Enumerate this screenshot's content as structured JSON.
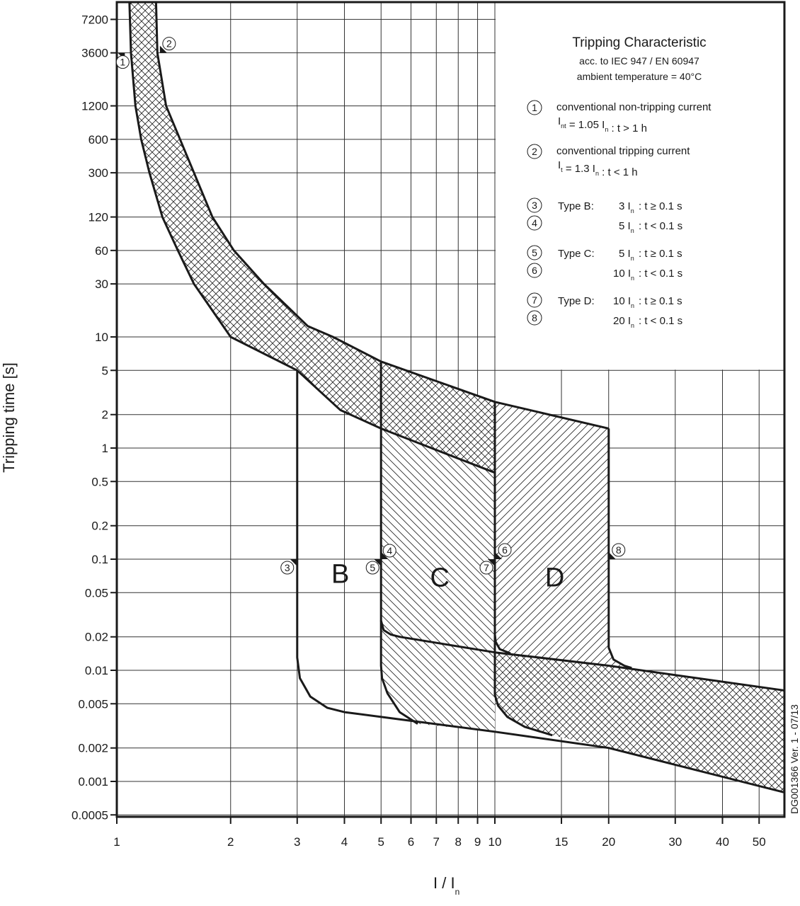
{
  "chart_data": {
    "type": "line",
    "title": "Tripping Characteristic",
    "subtitle": [
      "acc. to IEC 947 / EN 60947",
      "ambient temperature = 40°C"
    ],
    "xlabel": {
      "main": "I / I",
      "sub": "n"
    },
    "ylabel": "Tripping time [s]",
    "x_scale": "log",
    "y_scale": "log",
    "xlim": [
      1,
      58
    ],
    "ylim": [
      0.0005,
      10300
    ],
    "grid": true,
    "x_ticks": [
      1,
      2,
      3,
      4,
      5,
      6,
      7,
      8,
      9,
      10,
      15,
      20,
      30,
      40,
      50
    ],
    "x_tick_labels": [
      "1",
      "2",
      "3",
      "4",
      "5",
      "6",
      "7",
      "8",
      "9",
      "10",
      "15",
      "20",
      "30",
      "40",
      "50"
    ],
    "y_ticks": [
      7200,
      3600,
      1200,
      600,
      300,
      120,
      60,
      30,
      10,
      5,
      2,
      1,
      0.5,
      0.2,
      0.1,
      0.05,
      0.02,
      0.01,
      0.005,
      0.002,
      0.001,
      0.0005
    ],
    "y_tick_labels": [
      "7200",
      "3600",
      "1200",
      "600",
      "300",
      "120",
      "60",
      "30",
      "10",
      "5",
      "2",
      "1",
      "0.5",
      "0.2",
      "0.1",
      "0.05",
      "0.02",
      "0.01",
      "0.005",
      "0.002",
      "0.001",
      "0.0005"
    ],
    "legend_placement": "top-right",
    "regions": [
      {
        "id": "type-c-zone",
        "hatch": "diag-back",
        "points": [
          [
            5,
            6
          ],
          [
            10,
            2.6
          ],
          [
            10,
            0.0028
          ],
          [
            6.25,
            0.0033
          ],
          [
            5.6,
            0.0042
          ],
          [
            5.2,
            0.0062
          ],
          [
            5.03,
            0.0085
          ],
          [
            5,
            0.011
          ]
        ]
      },
      {
        "id": "type-d-zone",
        "hatch": "diag-fwd",
        "points": [
          [
            10,
            2.6
          ],
          [
            20,
            1.5
          ],
          [
            20,
            0.016
          ],
          [
            20.6,
            0.0125
          ],
          [
            22,
            0.011
          ],
          [
            23,
            0.0105
          ],
          [
            20,
            0.011
          ],
          [
            11,
            0.0142
          ],
          [
            10.3,
            0.0155
          ],
          [
            10.05,
            0.018
          ],
          [
            10,
            0.021
          ]
        ]
      },
      {
        "id": "thermal-band",
        "hatch": "cross",
        "points": [
          [
            1.27,
            10300
          ],
          [
            1.28,
            3600
          ],
          [
            1.35,
            1200
          ],
          [
            1.47,
            600
          ],
          [
            1.6,
            300
          ],
          [
            1.79,
            120
          ],
          [
            2.04,
            60
          ],
          [
            2.45,
            30
          ],
          [
            3.2,
            12.5
          ],
          [
            3.73,
            10
          ],
          [
            5,
            6
          ],
          [
            10,
            2.6
          ],
          [
            10,
            0.6
          ],
          [
            5,
            1.5
          ],
          [
            3.9,
            2.2
          ],
          [
            3,
            5
          ],
          [
            2.0,
            10
          ],
          [
            1.6,
            30
          ],
          [
            1.45,
            60
          ],
          [
            1.32,
            120
          ],
          [
            1.22,
            300
          ],
          [
            1.16,
            600
          ],
          [
            1.12,
            1200
          ],
          [
            1.09,
            3600
          ],
          [
            1.08,
            10300
          ]
        ]
      },
      {
        "id": "magnetic-band",
        "hatch": "cross",
        "points": [
          [
            10,
            0.0145
          ],
          [
            20,
            0.011
          ],
          [
            58,
            0.0066
          ],
          [
            58,
            0.0008
          ],
          [
            20,
            0.002
          ],
          [
            14.2,
            0.0026
          ],
          [
            12,
            0.0031
          ],
          [
            10.8,
            0.0038
          ],
          [
            10.2,
            0.0048
          ],
          [
            10,
            0.006
          ]
        ]
      }
    ],
    "curves": [
      {
        "id": "thermal-upper-curve",
        "points": [
          [
            1.27,
            10300
          ],
          [
            1.28,
            3600
          ],
          [
            1.35,
            1200
          ],
          [
            1.47,
            600
          ],
          [
            1.6,
            300
          ],
          [
            1.79,
            120
          ],
          [
            2.04,
            60
          ],
          [
            2.45,
            30
          ],
          [
            3.2,
            12.5
          ],
          [
            3.73,
            10
          ],
          [
            5,
            6
          ],
          [
            10,
            2.6
          ],
          [
            20,
            1.5
          ]
        ]
      },
      {
        "id": "thermal-lower-curve",
        "points": [
          [
            1.08,
            10300
          ],
          [
            1.09,
            3600
          ],
          [
            1.12,
            1200
          ],
          [
            1.16,
            600
          ],
          [
            1.22,
            300
          ],
          [
            1.32,
            120
          ],
          [
            1.45,
            60
          ],
          [
            1.6,
            30
          ],
          [
            2.0,
            10
          ],
          [
            3,
            5
          ],
          [
            3.9,
            2.2
          ],
          [
            5,
            1.5
          ],
          [
            10,
            0.6
          ]
        ]
      },
      {
        "id": "type-b-curve",
        "points": [
          [
            3,
            5
          ],
          [
            3,
            0.013
          ],
          [
            3.05,
            0.0085
          ],
          [
            3.25,
            0.0058
          ],
          [
            3.6,
            0.0046
          ],
          [
            4,
            0.0042
          ],
          [
            10,
            0.0028
          ],
          [
            20,
            0.002
          ],
          [
            58,
            0.0008
          ]
        ]
      },
      {
        "id": "type-c-upper-curve",
        "points": [
          [
            5,
            6
          ],
          [
            5,
            0.028
          ],
          [
            5.08,
            0.023
          ],
          [
            5.3,
            0.021
          ],
          [
            5.6,
            0.02
          ],
          [
            10,
            0.0145
          ],
          [
            20,
            0.011
          ],
          [
            58,
            0.0066
          ]
        ]
      },
      {
        "id": "type-c-lower-curve",
        "points": [
          [
            5,
            0.028
          ],
          [
            5,
            0.011
          ],
          [
            5.03,
            0.0085
          ],
          [
            5.2,
            0.0062
          ],
          [
            5.6,
            0.0042
          ],
          [
            6.25,
            0.0033
          ]
        ]
      },
      {
        "id": "type-d-left-curve",
        "points": [
          [
            10,
            2.6
          ],
          [
            10,
            0.021
          ],
          [
            10.05,
            0.018
          ],
          [
            10.3,
            0.0155
          ],
          [
            11,
            0.0142
          ]
        ]
      },
      {
        "id": "type-d-left-lower-curve",
        "points": [
          [
            10,
            0.021
          ],
          [
            10,
            0.006
          ],
          [
            10.2,
            0.0048
          ],
          [
            10.8,
            0.0038
          ],
          [
            12,
            0.0031
          ],
          [
            14.2,
            0.0026
          ]
        ]
      },
      {
        "id": "type-d-right-curve",
        "points": [
          [
            20,
            1.5
          ],
          [
            20,
            0.016
          ],
          [
            20.6,
            0.0125
          ],
          [
            22,
            0.011
          ],
          [
            23,
            0.0105
          ]
        ]
      }
    ],
    "markers": [
      {
        "label": "1",
        "x": 1.05,
        "t": 3600
      },
      {
        "label": "2",
        "x": 1.3,
        "t": 3600
      },
      {
        "label": "3",
        "x": 3,
        "t": 0.1
      },
      {
        "label": "4",
        "x": 5,
        "t": 0.1
      },
      {
        "label": "5",
        "x": 5,
        "t": 0.1
      },
      {
        "label": "6",
        "x": 10,
        "t": 0.1
      },
      {
        "label": "7",
        "x": 10,
        "t": 0.1
      },
      {
        "label": "8",
        "x": 20,
        "t": 0.1
      }
    ],
    "zone_labels": [
      {
        "text": "B",
        "x": 3.9,
        "t": 0.075
      },
      {
        "text": "C",
        "x": 7.15,
        "t": 0.07
      },
      {
        "text": "D",
        "x": 14.4,
        "t": 0.07
      }
    ],
    "legend": [
      {
        "num": "1",
        "lines": [
          [
            {
              "t": "conventional non-tripping current"
            }
          ],
          [
            {
              "t": "I"
            },
            {
              "sub": "nt"
            },
            {
              "t": "  = 1.05 I"
            },
            {
              "sub": "n"
            },
            {
              "t": " :  t > 1 h"
            }
          ]
        ]
      },
      {
        "num": "2",
        "lines": [
          [
            {
              "t": "conventional tripping current"
            }
          ],
          [
            {
              "t": "I"
            },
            {
              "sub": "t"
            },
            {
              "t": "  = 1.3 I"
            },
            {
              "sub": "n"
            },
            {
              "t": " :  t < 1 h"
            }
          ]
        ]
      }
    ],
    "types": [
      {
        "nums": [
          "3",
          "4"
        ],
        "name": "Type B:",
        "rows": [
          {
            "mult": "3 I",
            "cond": ": t ≥ 0.1 s"
          },
          {
            "mult": "5 I",
            "cond": ": t < 0.1 s"
          }
        ]
      },
      {
        "nums": [
          "5",
          "6"
        ],
        "name": "Type C:",
        "rows": [
          {
            "mult": "5 I",
            "cond": ": t ≥ 0.1 s"
          },
          {
            "mult": "10 I",
            "cond": ": t < 0.1 s"
          }
        ]
      },
      {
        "nums": [
          "7",
          "8"
        ],
        "name": "Type D:",
        "rows": [
          {
            "mult": "10 I",
            "cond": ": t ≥ 0.1 s"
          },
          {
            "mult": "20 I",
            "cond": ": t < 0.1 s"
          }
        ]
      }
    ],
    "footnote": "DG001366 Ver. 1 - 07/13",
    "colors": {
      "ink": "#1a1a1a",
      "grid": "#333333",
      "background": "#ffffff"
    }
  }
}
